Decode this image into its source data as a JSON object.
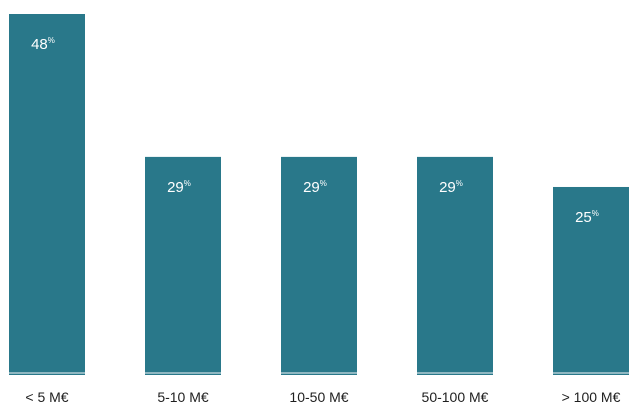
{
  "chart_data": {
    "type": "bar",
    "categories": [
      "< 5 M€",
      "5-10 M€",
      "10-50 M€",
      "50-100 M€",
      "> 100 M€"
    ],
    "values": [
      48,
      29,
      29,
      29,
      25
    ],
    "value_suffix": "%",
    "ylim": [
      0,
      48
    ],
    "grid": false,
    "legend": "none",
    "colors": {
      "bar": "#29788A",
      "bar_base": "#8FB7C1",
      "text_on_bar": "#FFFFFF",
      "category_text": "#1F1F1F"
    }
  }
}
